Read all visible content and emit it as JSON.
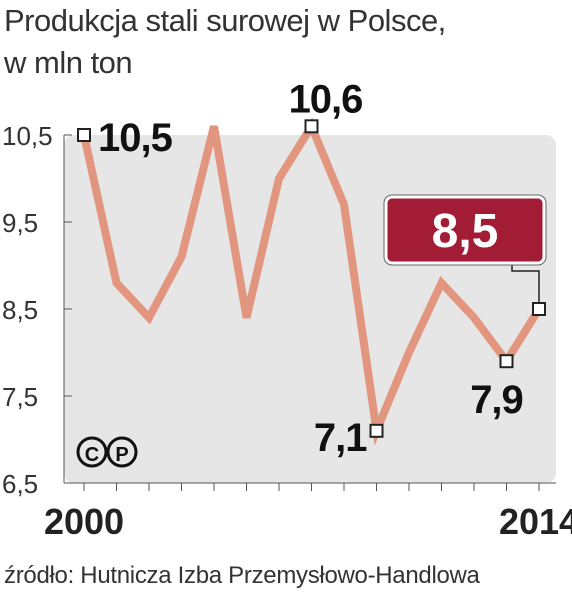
{
  "title_line1": "Produkcja stali surowej w Polsce,",
  "title_line2": "w mln ton",
  "source": "źródło: Hutnicza Izba Przemysłowo-Handlowa",
  "copyright_symbols": [
    "C",
    "P"
  ],
  "colors": {
    "line": "#e2967f",
    "plot_bg": "#e6e6e6",
    "highlight_box": "#a31c35",
    "marker_fill": "#ffffff",
    "marker_stroke": "#222222",
    "label_text": "#111111"
  },
  "chart_data": {
    "type": "line",
    "title": "Produkcja stali surowej w Polsce, w mln ton",
    "xlabel": "",
    "ylabel": "",
    "x": [
      2000,
      2001,
      2002,
      2003,
      2004,
      2005,
      2006,
      2007,
      2008,
      2009,
      2010,
      2011,
      2012,
      2013,
      2014
    ],
    "x_tick_labels": [
      {
        "x": 2000,
        "label": "2000"
      },
      {
        "x": 2014,
        "label": "2014"
      }
    ],
    "series": [
      {
        "values": [
          10.5,
          8.8,
          8.4,
          9.1,
          10.6,
          8.4,
          10.0,
          10.6,
          9.7,
          7.1,
          8.0,
          8.8,
          8.4,
          7.9,
          8.5
        ]
      }
    ],
    "ylim": [
      6.5,
      10.5
    ],
    "yticks": [
      "10,5",
      "9,5",
      "8,5",
      "7,5",
      "6,5"
    ],
    "ytick_values": [
      10.5,
      9.5,
      8.5,
      7.5,
      6.5
    ],
    "annotations": [
      {
        "x": 2000,
        "label": "10,5"
      },
      {
        "x": 2007,
        "label": "10,6"
      },
      {
        "x": 2009,
        "label": "7,1"
      },
      {
        "x": 2013,
        "label": "7,9"
      },
      {
        "x": 2014,
        "label": "8,5",
        "highlight": true
      }
    ],
    "grid": false,
    "legend": "none"
  }
}
